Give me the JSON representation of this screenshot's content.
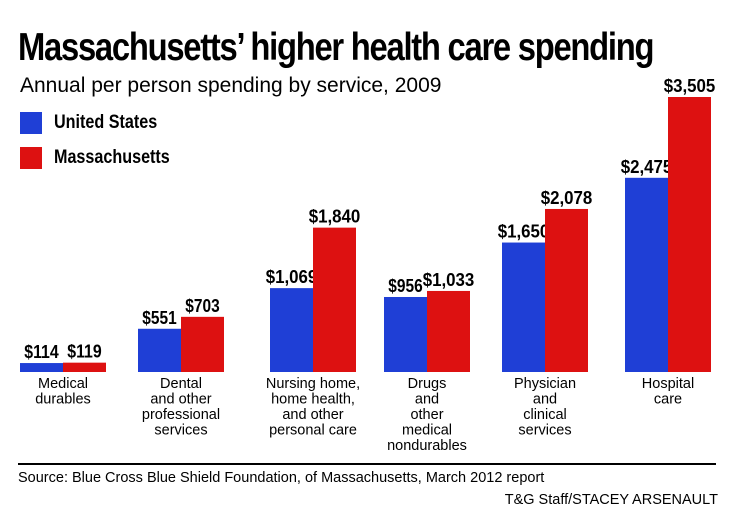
{
  "header": {
    "title": "Massachusetts’ higher health care spending",
    "subtitle": "Annual per person spending by service, 2009"
  },
  "colors": {
    "us": "#1f3fd6",
    "ma": "#dd1111"
  },
  "chart_data": {
    "type": "bar",
    "title": "Massachusetts’ higher health care spending",
    "subtitle": "Annual per person spending by service, 2009",
    "categories": [
      "Medical\ndurables",
      "Dental\nand other\nprofessional\nservices",
      "Nursing home,\nhome health,\nand other\npersonal care",
      "Drugs\nand\nother\nmedical\nnondurables",
      "Physician\nand\nclinical\nservices",
      "Hospital\ncare"
    ],
    "series": [
      {
        "name": "United States",
        "values": [
          114,
          551,
          1069,
          956,
          1650,
          2475
        ],
        "labels": [
          "$114",
          "$551",
          "$1,069",
          "$956",
          "$1,650",
          "$2,475"
        ]
      },
      {
        "name": "Massachusetts",
        "values": [
          119,
          703,
          1840,
          1033,
          2078,
          3505
        ],
        "labels": [
          "$119",
          "$703",
          "$1,840",
          "$1,033",
          "$2,078",
          "$3,505"
        ]
      }
    ],
    "ylim": [
      0,
      3505
    ],
    "grid": false,
    "legend_placement": "top-left"
  },
  "footer": {
    "source": "Source: Blue Cross Blue Shield Foundation, of Massachusetts, March 2012 report",
    "credit": "T&G Staff/STACEY ARSENAULT"
  }
}
